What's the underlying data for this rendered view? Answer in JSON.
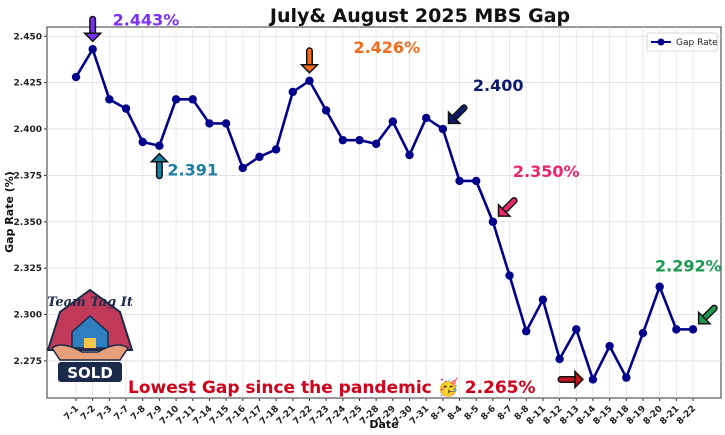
{
  "chart_data": {
    "type": "line",
    "title": "July& August 2025 MBS Gap",
    "xlabel": "Date",
    "ylabel": "Gap Rate (%)",
    "ylim": [
      2.255,
      2.455
    ],
    "yticks": [
      "2.275",
      "2.300",
      "2.325",
      "2.350",
      "2.375",
      "2.400",
      "2.425",
      "2.450"
    ],
    "grid": true,
    "legend_position": "top-right",
    "series": [
      {
        "name": "Gap Rate",
        "color": "#00008b",
        "x": [
          "7-1",
          "7-2",
          "7-3",
          "7-7",
          "7-8",
          "7-9",
          "7-10",
          "7-11",
          "7-14",
          "7-15",
          "7-16",
          "7-17",
          "7-18",
          "7-21",
          "7-22",
          "7-23",
          "7-24",
          "7-25",
          "7-28",
          "7-29",
          "7-30",
          "7-31",
          "8-1",
          "8-4",
          "8-5",
          "8-6",
          "8-7",
          "8-8",
          "8-11",
          "8-12",
          "8-13",
          "8-14",
          "8-15",
          "8-18",
          "8-19",
          "8-20",
          "8-21",
          "8-22"
        ],
        "values": [
          2.428,
          2.443,
          2.416,
          2.411,
          2.393,
          2.391,
          2.416,
          2.416,
          2.403,
          2.403,
          2.379,
          2.385,
          2.389,
          2.42,
          2.426,
          2.41,
          2.394,
          2.394,
          2.392,
          2.404,
          2.386,
          2.406,
          2.4,
          2.372,
          2.372,
          2.35,
          2.321,
          2.291,
          2.308,
          2.276,
          2.292,
          2.265,
          2.283,
          2.266,
          2.29,
          2.315,
          2.292,
          2.292
        ]
      }
    ],
    "annotations": [
      {
        "label": "2.443%",
        "x": "7-2",
        "color": "#7b2ff7"
      },
      {
        "label": "2.391",
        "x": "7-9",
        "color": "#1a7fa0"
      },
      {
        "label": "2.426%",
        "x": "7-22",
        "color": "#f26b1d"
      },
      {
        "label": "2.400",
        "x": "8-1",
        "color": "#0d1b6e"
      },
      {
        "label": "2.350%",
        "x": "8-6",
        "color": "#f0266d"
      },
      {
        "label": "2.292%",
        "x": "8-22",
        "color": "#1a9a50"
      }
    ],
    "bottom_note": "Lowest Gap since the pandemic 🥳 2.265%",
    "logo": {
      "top_text": "Team Tag It",
      "badge_text": "SOLD"
    }
  }
}
